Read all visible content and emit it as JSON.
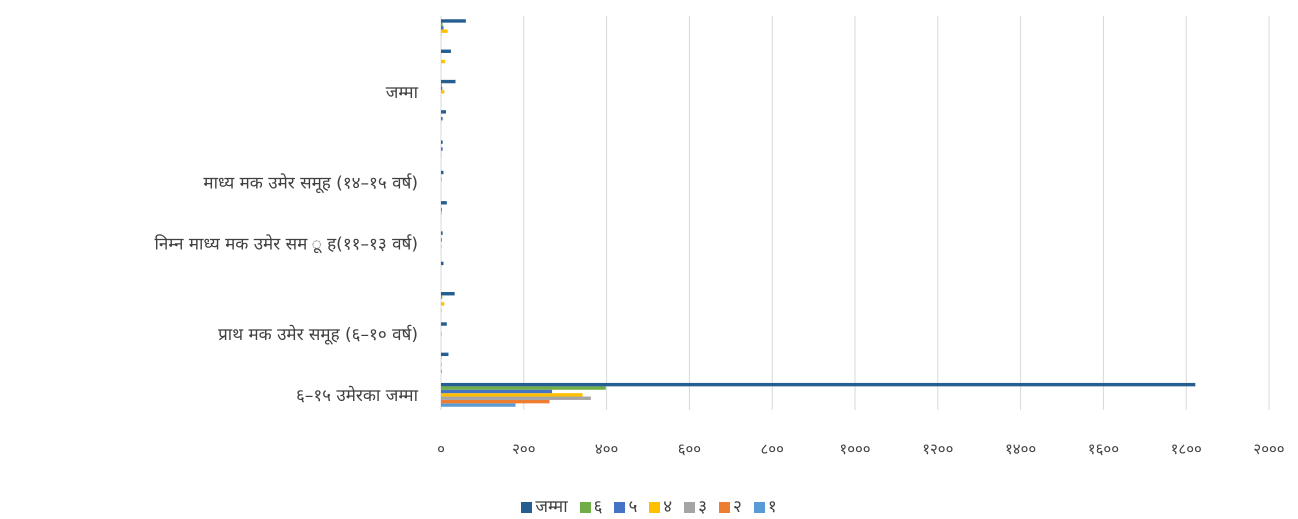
{
  "chart_data": {
    "type": "bar",
    "orientation": "horizontal",
    "xlim": [
      0,
      2000
    ],
    "x_ticks": [
      "०",
      "२००",
      "४००",
      "६००",
      "८००",
      "१०००",
      "१२००",
      "१४००",
      "१६००",
      "१८००",
      "२०००"
    ],
    "grid": true,
    "legend_position": "bottom",
    "category_labels": [
      "६–१५ उमेरका जम्मा",
      "प्राथ मक उमेर समूह (६–१० वर्ष)",
      "निम्न माध्य मक उमेर सम ू ह(११–१३ वर्ष)",
      "माध्य मक उमेर समूह (१४–१५ वर्ष)",
      "जम्मा"
    ],
    "rows": [
      {
        "label": "६–१५ उमेरका जम्मा",
        "values": [
          180,
          262,
          362,
          342,
          268,
          398,
          1822
        ]
      },
      {
        "label": "",
        "values": [
          0,
          2,
          0,
          2,
          0,
          1,
          18
        ]
      },
      {
        "label": "प्राथ मक उमेर समूह (६–१० वर्ष)",
        "values": [
          0,
          0,
          0,
          2,
          0,
          0,
          14
        ]
      },
      {
        "label": "",
        "values": [
          0,
          1,
          0,
          8,
          0,
          3,
          33
        ]
      },
      {
        "label": "",
        "values": [
          0,
          0,
          0,
          0,
          0,
          0,
          6
        ]
      },
      {
        "label": "निम्न माध्य मक उमेर सम ू ह(११–१३ वर्ष)",
        "values": [
          0,
          0,
          1,
          0,
          2,
          0,
          4
        ]
      },
      {
        "label": "",
        "values": [
          0,
          0,
          0,
          2,
          2,
          0,
          14
        ]
      },
      {
        "label": "माध्य मक उमेर समूह (१४–१५ वर्ष)",
        "values": [
          0,
          0,
          0,
          0,
          1,
          0,
          6
        ]
      },
      {
        "label": "",
        "values": [
          0,
          0,
          1,
          1,
          4,
          0,
          4
        ]
      },
      {
        "label": "",
        "values": [
          0,
          0,
          0,
          1,
          4,
          0,
          12
        ]
      },
      {
        "label": "जम्मा",
        "values": [
          0,
          0,
          0,
          8,
          3,
          2,
          35
        ]
      },
      {
        "label": "",
        "values": [
          0,
          0,
          0,
          10,
          0,
          0,
          24
        ]
      },
      {
        "label": "",
        "values": [
          0,
          0,
          1,
          16,
          6,
          4,
          60
        ]
      }
    ],
    "series": [
      {
        "name": "१",
        "color": "#5B9BD5"
      },
      {
        "name": "२",
        "color": "#ED7D31"
      },
      {
        "name": "३",
        "color": "#A5A5A5"
      },
      {
        "name": "४",
        "color": "#FFC000"
      },
      {
        "name": "५",
        "color": "#4472C4"
      },
      {
        "name": "६",
        "color": "#70AD47"
      },
      {
        "name": "जम्मा",
        "color": "#255E91"
      }
    ],
    "legend_order": [
      "जम्मा",
      "६",
      "५",
      "४",
      "३",
      "२",
      "१"
    ]
  }
}
